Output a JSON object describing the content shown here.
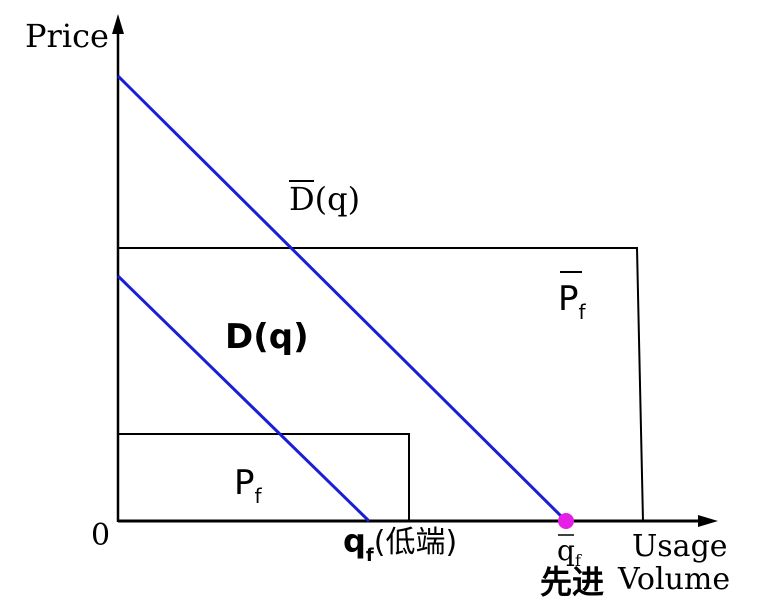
{
  "axes": {
    "y_label": "Price",
    "x_label_line1": "Usage",
    "x_label_line2": "Volume",
    "origin_label": "0"
  },
  "labels": {
    "d_bar": {
      "letter": "D",
      "suffix": "(q)"
    },
    "d": {
      "text": "D(q)"
    },
    "p_bar": {
      "letter": "P",
      "subscript": "f"
    },
    "p": {
      "letter": "P",
      "subscript": "f"
    },
    "q_low": {
      "letter": "q",
      "subscript": "f",
      "suffix": "(低端)"
    },
    "q_bar": {
      "letter": "q",
      "subscript": "f"
    },
    "advanced": "先进"
  },
  "colors": {
    "demand_lines": "#1a1fd6",
    "axis": "#000000",
    "marker": "#e61ee6"
  }
}
